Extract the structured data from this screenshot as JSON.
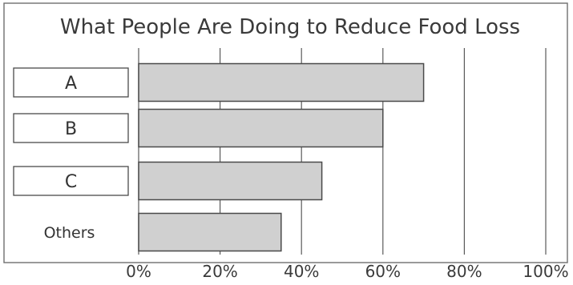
{
  "chart_data": {
    "type": "bar",
    "orientation": "horizontal",
    "title": "What People Are Doing to Reduce Food Loss",
    "categories": [
      "A",
      "B",
      "C",
      "Others"
    ],
    "boxed_categories": [
      "A",
      "B",
      "C"
    ],
    "values": [
      70,
      60,
      45,
      35
    ],
    "unit": "%",
    "xlim": [
      0,
      100
    ],
    "ticks": [
      0,
      20,
      40,
      60,
      80,
      100
    ],
    "tick_labels": [
      "0%",
      "20%",
      "40%",
      "60%",
      "80%",
      "100%"
    ],
    "grid": true,
    "xlabel": "",
    "ylabel": "",
    "colors": {
      "bar_fill": "#d0d0d0",
      "bar_stroke": "#4a4a4a"
    }
  }
}
